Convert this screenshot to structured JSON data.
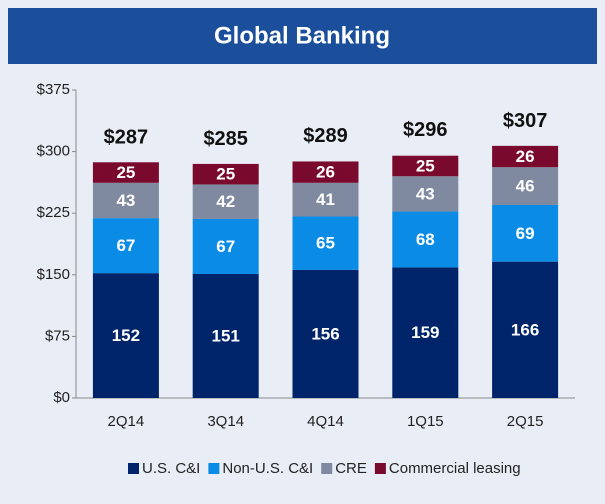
{
  "chart_data": {
    "type": "stacked-bar",
    "title": "Global Banking",
    "categories": [
      "2Q14",
      "3Q14",
      "4Q14",
      "1Q15",
      "2Q15"
    ],
    "series": [
      {
        "name": "U.S. C&I",
        "color": "#002469",
        "values": [
          152,
          151,
          156,
          159,
          166
        ]
      },
      {
        "name": "Non-U.S. C&I",
        "color": "#0a8be6",
        "values": [
          67,
          67,
          65,
          68,
          69
        ]
      },
      {
        "name": "CRE",
        "color": "#7f8aa0",
        "values": [
          43,
          42,
          41,
          43,
          46
        ]
      },
      {
        "name": "Commercial leasing",
        "color": "#7a0a2d",
        "values": [
          25,
          25,
          26,
          25,
          26
        ]
      }
    ],
    "totals": [
      287,
      285,
      289,
      296,
      307
    ],
    "total_labels": [
      "$287",
      "$285",
      "$289",
      "$296",
      "$307"
    ],
    "ylim": [
      0,
      375
    ],
    "yticks": [
      {
        "value": 0,
        "label": "$0"
      },
      {
        "value": 75,
        "label": "$75"
      },
      {
        "value": 150,
        "label": "$150"
      },
      {
        "value": 225,
        "label": "$225"
      },
      {
        "value": 300,
        "label": "$300"
      },
      {
        "value": 375,
        "label": "$375"
      }
    ],
    "grid": false
  }
}
